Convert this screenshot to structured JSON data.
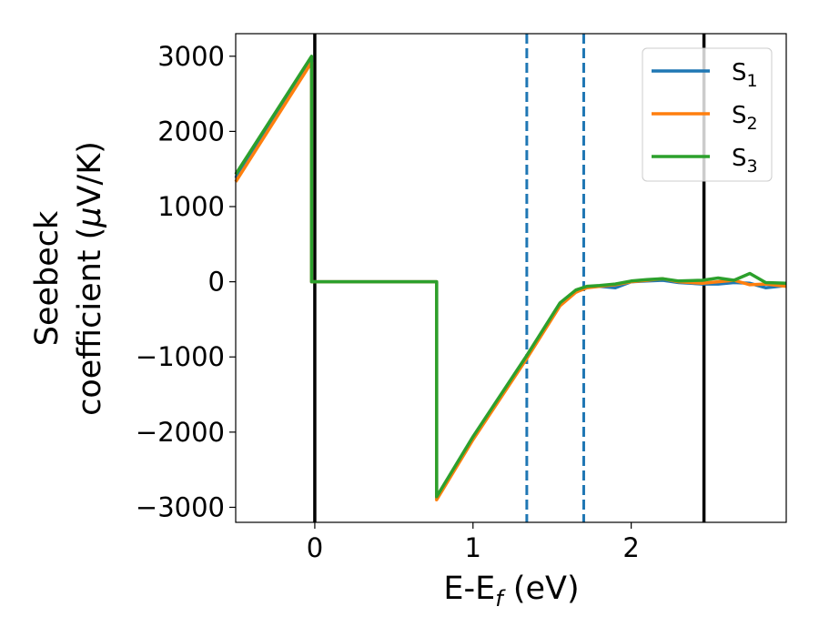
{
  "chart_data": {
    "type": "line",
    "title": "",
    "xlabel": "E-E",
    "xlabel_sub": "f",
    "xlabel_unit": " (eV)",
    "ylabel_line1": "Seebeck",
    "ylabel_line2": "coefficient  (",
    "ylabel_mu": "μ",
    "ylabel_tail": "V/K)",
    "xlim": [
      -0.5,
      2.98
    ],
    "ylim": [
      -3200,
      3300
    ],
    "xticks": [
      0,
      1,
      2
    ],
    "xtick_labels": [
      "0",
      "1",
      "2"
    ],
    "yticks": [
      3000,
      2000,
      1000,
      0,
      -1000,
      -2000,
      -3000
    ],
    "ytick_labels": [
      "3000",
      "2000",
      "1000",
      "0",
      "−1000",
      "−2000",
      "−3000"
    ],
    "grid": false,
    "legend_position": "top-right",
    "series": [
      {
        "name": "S",
        "sub": "1",
        "color": "#1f77b4",
        "x": [
          -0.5,
          -0.02,
          -0.02,
          0.77,
          0.77,
          1.0,
          1.34,
          1.55,
          1.65,
          1.72,
          1.8,
          1.9,
          2.0,
          2.1,
          2.2,
          2.3,
          2.45,
          2.55,
          2.65,
          2.75,
          2.85,
          2.98
        ],
        "y": [
          1380,
          2950,
          0,
          0,
          -2880,
          -2080,
          -1000,
          -300,
          -130,
          -70,
          -60,
          -80,
          0,
          10,
          20,
          -10,
          -30,
          -30,
          -10,
          -20,
          -80,
          -50
        ]
      },
      {
        "name": "S",
        "sub": "2",
        "color": "#ff7f0e",
        "x": [
          -0.5,
          -0.02,
          -0.02,
          0.77,
          0.77,
          1.0,
          1.34,
          1.55,
          1.65,
          1.72,
          1.8,
          1.9,
          2.0,
          2.1,
          2.2,
          2.3,
          2.45,
          2.55,
          2.65,
          2.75,
          2.85,
          2.98
        ],
        "y": [
          1330,
          2920,
          0,
          0,
          -2900,
          -2100,
          -1020,
          -320,
          -140,
          -80,
          -60,
          -40,
          0,
          20,
          40,
          0,
          -20,
          0,
          20,
          -40,
          -30,
          -60
        ]
      },
      {
        "name": "S",
        "sub": "3",
        "color": "#2ca02c",
        "x": [
          -0.5,
          -0.02,
          -0.02,
          0.77,
          0.77,
          1.0,
          1.34,
          1.55,
          1.65,
          1.72,
          1.8,
          1.9,
          2.0,
          2.1,
          2.2,
          2.3,
          2.45,
          2.55,
          2.65,
          2.75,
          2.85,
          2.98
        ],
        "y": [
          1430,
          3000,
          0,
          0,
          -2860,
          -2060,
          -980,
          -280,
          -110,
          -60,
          -50,
          -30,
          10,
          30,
          40,
          10,
          20,
          50,
          20,
          110,
          -10,
          -20
        ]
      }
    ],
    "vlines": [
      {
        "x": 0.0,
        "color": "#000000",
        "style": "solid"
      },
      {
        "x": 1.34,
        "color": "#1f77b4",
        "style": "dashed"
      },
      {
        "x": 1.7,
        "color": "#1f77b4",
        "style": "dashed"
      },
      {
        "x": 2.46,
        "color": "#000000",
        "style": "solid"
      }
    ]
  }
}
